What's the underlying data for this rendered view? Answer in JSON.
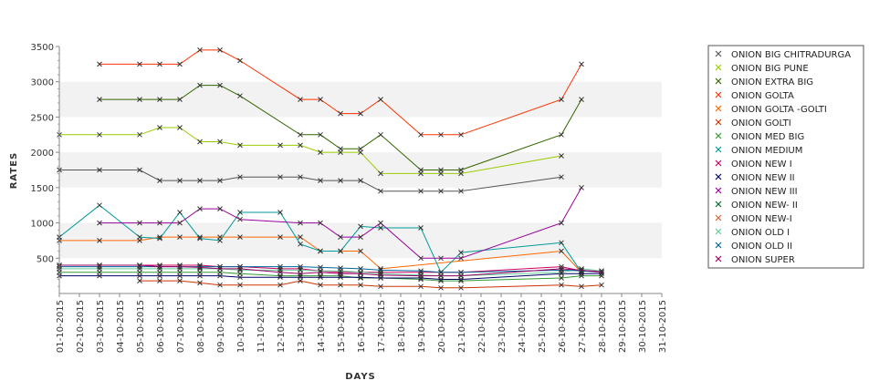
{
  "chart_data": {
    "type": "line",
    "title": "",
    "xlabel": "DAYS",
    "ylabel": "RATES",
    "ylim": [
      0,
      3500
    ],
    "yticks": [
      500,
      1000,
      1500,
      2000,
      2500,
      3000,
      3500
    ],
    "grid": "alternating horizontal bands",
    "legend_position": "right",
    "categories": [
      "01-10-2015",
      "02-10-2015",
      "03-10-2015",
      "04-10-2015",
      "05-10-2015",
      "06-10-2015",
      "07-10-2015",
      "08-10-2015",
      "09-10-2015",
      "10-10-2015",
      "11-10-2015",
      "12-10-2015",
      "13-10-2015",
      "14-10-2015",
      "15-10-2015",
      "16-10-2015",
      "17-10-2015",
      "18-10-2015",
      "19-10-2015",
      "20-10-2015",
      "21-10-2015",
      "22-10-2015",
      "23-10-2015",
      "24-10-2015",
      "25-10-2015",
      "26-10-2015",
      "27-10-2015",
      "28-10-2015",
      "29-10-2015",
      "30-10-2015",
      "31-10-2015"
    ],
    "series": [
      {
        "name": "ONION BIG CHITRADURGA",
        "color": "#555555",
        "values": [
          1750,
          null,
          1750,
          null,
          1750,
          1600,
          1600,
          1600,
          1600,
          1650,
          null,
          1650,
          1650,
          1600,
          1600,
          1600,
          1450,
          null,
          1450,
          1450,
          1450,
          null,
          null,
          null,
          null,
          1650,
          null,
          null,
          null,
          null,
          null
        ]
      },
      {
        "name": "ONION BIG PUNE",
        "color": "#99cc00",
        "values": [
          2250,
          null,
          2250,
          null,
          2250,
          2350,
          2350,
          2150,
          2150,
          2100,
          null,
          2100,
          2100,
          2000,
          2000,
          2000,
          1700,
          null,
          1700,
          1700,
          1700,
          null,
          null,
          null,
          null,
          1950,
          null,
          null,
          null,
          null,
          null
        ]
      },
      {
        "name": "ONION EXTRA BIG",
        "color": "#336600",
        "values": [
          null,
          null,
          2750,
          null,
          2750,
          2750,
          2750,
          2950,
          2950,
          2800,
          null,
          null,
          2250,
          2250,
          2050,
          2050,
          2250,
          null,
          1750,
          1750,
          1750,
          null,
          null,
          null,
          null,
          2250,
          2750,
          null,
          null,
          null,
          null
        ]
      },
      {
        "name": "ONION GOLTA",
        "color": "#ff3300",
        "values": [
          null,
          null,
          3250,
          null,
          3250,
          3250,
          3250,
          3450,
          3450,
          3300,
          null,
          null,
          2750,
          2750,
          2550,
          2550,
          2750,
          null,
          2250,
          2250,
          2250,
          null,
          null,
          null,
          null,
          2750,
          3250,
          null,
          null,
          null,
          null
        ]
      },
      {
        "name": "ONION GOLTA -GOLTI",
        "color": "#ff6600",
        "values": [
          750,
          null,
          750,
          null,
          750,
          800,
          800,
          800,
          800,
          800,
          null,
          800,
          800,
          600,
          600,
          600,
          350,
          null,
          null,
          null,
          null,
          null,
          null,
          null,
          null,
          600,
          300,
          null,
          null,
          null,
          null
        ]
      },
      {
        "name": "ONION GOLTI",
        "color": "#cc3300",
        "values": [
          null,
          null,
          null,
          null,
          180,
          180,
          180,
          150,
          120,
          120,
          null,
          120,
          180,
          120,
          120,
          120,
          100,
          null,
          100,
          80,
          80,
          null,
          null,
          null,
          null,
          120,
          100,
          120,
          null,
          null,
          null
        ]
      },
      {
        "name": "ONION MED BIG",
        "color": "#339933",
        "values": [
          300,
          null,
          300,
          null,
          300,
          300,
          300,
          300,
          300,
          280,
          null,
          250,
          250,
          250,
          250,
          220,
          220,
          null,
          200,
          180,
          180,
          null,
          null,
          null,
          null,
          220,
          250,
          250,
          null,
          null,
          null
        ]
      },
      {
        "name": "ONION MEDIUM",
        "color": "#009999",
        "values": [
          800,
          null,
          1250,
          null,
          800,
          780,
          1150,
          780,
          750,
          1150,
          null,
          1150,
          700,
          600,
          600,
          950,
          930,
          null,
          930,
          300,
          580,
          null,
          null,
          null,
          null,
          720,
          300,
          null,
          null,
          null,
          null
        ]
      },
      {
        "name": "ONION NEW I",
        "color": "#cc0066",
        "values": [
          400,
          null,
          400,
          null,
          400,
          400,
          400,
          400,
          380,
          380,
          null,
          350,
          350,
          320,
          300,
          300,
          300,
          null,
          300,
          300,
          300,
          null,
          null,
          null,
          null,
          380,
          320,
          320,
          null,
          null,
          null
        ]
      },
      {
        "name": "ONION NEW II",
        "color": "#000066",
        "values": [
          250,
          null,
          250,
          null,
          250,
          250,
          250,
          250,
          250,
          230,
          null,
          230,
          230,
          230,
          230,
          230,
          220,
          null,
          220,
          200,
          200,
          null,
          null,
          null,
          null,
          280,
          280,
          280,
          null,
          null,
          null
        ]
      },
      {
        "name": "ONION NEW III",
        "color": "#990099",
        "values": [
          null,
          null,
          1000,
          null,
          1000,
          1000,
          1000,
          1200,
          1200,
          1050,
          null,
          null,
          1000,
          1000,
          800,
          800,
          1000,
          null,
          500,
          500,
          500,
          null,
          null,
          null,
          null,
          1000,
          1500,
          null,
          null,
          null,
          null
        ]
      },
      {
        "name": "ONION NEW- II",
        "color": "#006633",
        "values": [
          null,
          null,
          null,
          null,
          null,
          null,
          null,
          null,
          null,
          null,
          null,
          null,
          null,
          null,
          null,
          null,
          null,
          null,
          null,
          null,
          null,
          null,
          null,
          null,
          null,
          null,
          null,
          null,
          null,
          null,
          null
        ]
      },
      {
        "name": "ONION NEW-I",
        "color": "#cc6633",
        "values": [
          null,
          null,
          null,
          null,
          null,
          null,
          null,
          null,
          null,
          null,
          null,
          null,
          null,
          null,
          null,
          null,
          null,
          null,
          null,
          null,
          null,
          null,
          null,
          null,
          null,
          null,
          null,
          null,
          null,
          null,
          null
        ]
      },
      {
        "name": "ONION OLD I",
        "color": "#66cc99",
        "values": [
          350,
          null,
          350,
          null,
          350,
          350,
          350,
          350,
          350,
          330,
          null,
          330,
          330,
          320,
          320,
          300,
          280,
          null,
          260,
          250,
          250,
          null,
          null,
          null,
          null,
          300,
          350,
          320,
          null,
          null,
          null
        ]
      },
      {
        "name": "ONION OLD II",
        "color": "#006699",
        "values": [
          380,
          null,
          380,
          null,
          380,
          380,
          380,
          380,
          380,
          380,
          null,
          380,
          380,
          370,
          360,
          350,
          330,
          null,
          320,
          300,
          300,
          null,
          null,
          null,
          null,
          330,
          320,
          300,
          null,
          null,
          null
        ]
      },
      {
        "name": "ONION SUPER",
        "color": "#990066",
        "values": [
          400,
          null,
          400,
          null,
          400,
          380,
          380,
          370,
          350,
          350,
          null,
          300,
          280,
          300,
          280,
          280,
          260,
          null,
          250,
          250,
          250,
          null,
          null,
          null,
          null,
          350,
          330,
          300,
          null,
          null,
          null
        ]
      }
    ]
  }
}
